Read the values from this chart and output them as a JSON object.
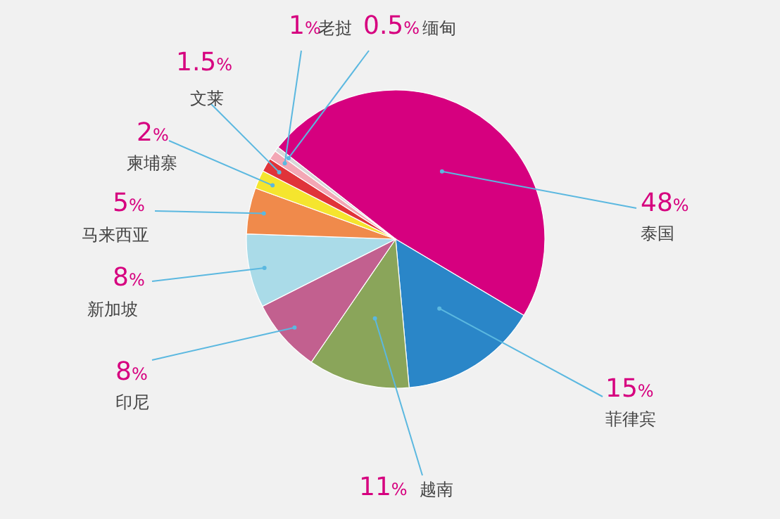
{
  "chart_data": {
    "type": "pie",
    "categories": [
      "泰国",
      "菲律宾",
      "越南",
      "印尼",
      "新加坡",
      "马来西亚",
      "柬埔寨",
      "文莱",
      "老挝",
      "缅甸"
    ],
    "values": [
      48,
      15,
      11,
      8,
      8,
      5,
      2,
      1.5,
      1,
      0.5
    ],
    "colors": [
      "#d6007f",
      "#2a86c8",
      "#8aa55a",
      "#c2608f",
      "#aadbe8",
      "#f08a4b",
      "#f5e52e",
      "#e0343a",
      "#f3a7b5",
      "#d8d8d8"
    ],
    "value_labels": [
      "48%",
      "15%",
      "11%",
      "8%",
      "8%",
      "5%",
      "2%",
      "1.5%",
      "1%",
      "0.5%"
    ]
  }
}
